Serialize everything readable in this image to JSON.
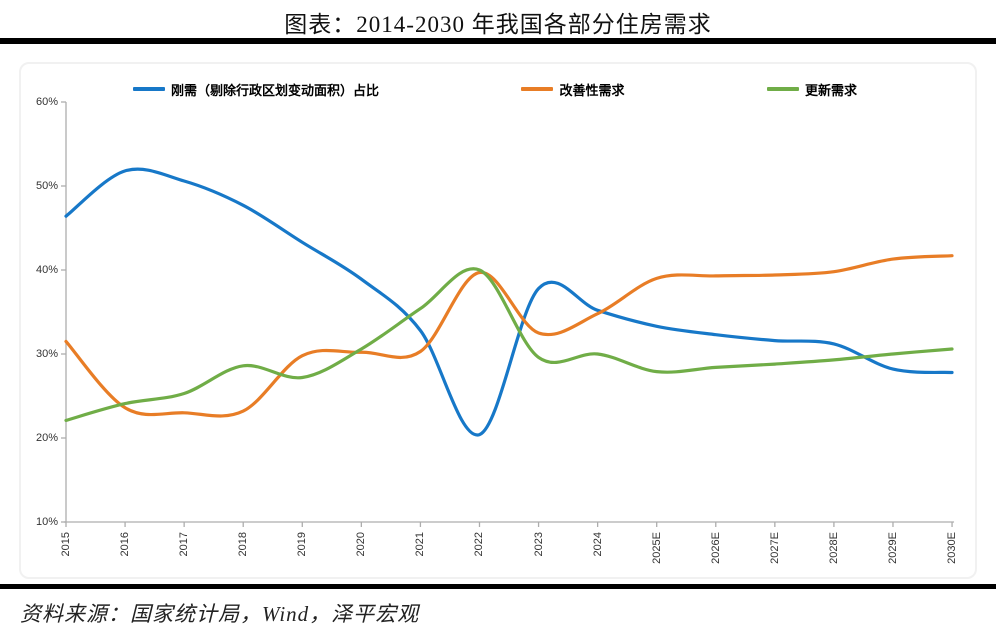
{
  "title": "图表：2014-2030 年我国各部分住房需求",
  "source": "资料来源：国家统计局，Wind，泽平宏观",
  "colors": {
    "rigid_demand": "#1778C8",
    "improvement_demand": "#E87D26",
    "renewal_demand": "#70AD47",
    "axis": "#ADADAD",
    "divider": "#000000"
  },
  "chart_data": {
    "type": "line",
    "smooth": true,
    "grid": false,
    "legend_position": "top",
    "x": [
      "2015",
      "2016",
      "2017",
      "2018",
      "2019",
      "2020",
      "2021",
      "2022",
      "2023",
      "2024",
      "2025E",
      "2026E",
      "2027E",
      "2028E",
      "2029E",
      "2030E"
    ],
    "series": [
      {
        "name": "刚需（剔除行政区划变动面积）占比",
        "color": "#1778C8",
        "values": [
          46.4,
          51.8,
          50.6,
          47.7,
          43.3,
          38.9,
          32.8,
          20.4,
          37.8,
          35.2,
          33.3,
          32.3,
          31.6,
          31.2,
          28.2,
          27.8
        ]
      },
      {
        "name": "改善性需求",
        "color": "#E87D26",
        "values": [
          31.5,
          23.6,
          23.0,
          23.2,
          29.8,
          30.2,
          30.3,
          39.7,
          32.5,
          34.8,
          39.0,
          39.3,
          39.4,
          39.8,
          41.3,
          41.7
        ]
      },
      {
        "name": "更新需求",
        "color": "#70AD47",
        "values": [
          22.1,
          24.1,
          25.3,
          28.6,
          27.2,
          30.6,
          35.4,
          40.0,
          29.6,
          30.0,
          27.9,
          28.4,
          28.8,
          29.3,
          30.0,
          30.6
        ]
      }
    ],
    "ylim": [
      10,
      60
    ],
    "y_tick_labels": [
      "10%",
      "20%",
      "30%",
      "40%",
      "50%",
      "60%"
    ],
    "xlabel": "",
    "ylabel": ""
  }
}
